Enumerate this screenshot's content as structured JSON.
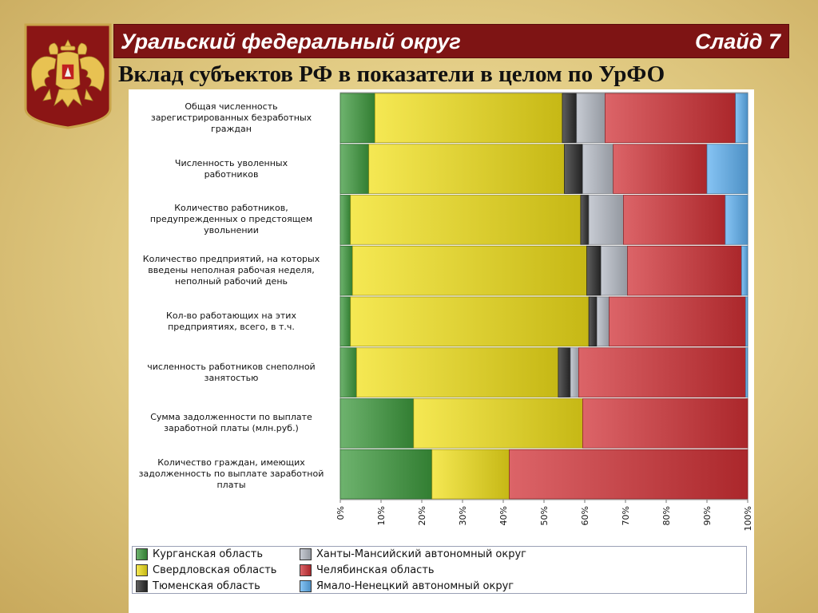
{
  "header": {
    "title": "Уральский федеральный округ",
    "slide_label": "Слайд 7",
    "subtitle": "Вклад субъектов РФ в показатели в целом по УрФО"
  },
  "emblem": {
    "icon": "double-headed-eagle-coat-of-arms",
    "color": "#8b1515"
  },
  "chart_data": {
    "type": "bar",
    "orientation": "horizontal",
    "stacked": "percent",
    "categories": [
      "Общая численность\nзарегистрированных безработных\nграждан",
      "Численность уволенных\nработников",
      "Количество работников,\nпредупрежденных о предстоящем\nувольнении",
      "Количество предприятий, на которых\nвведены неполная рабочая неделя,\nнеполный рабочий день",
      "Кол-во работающих на этих\nпредприятиях, всего, в т.ч.",
      "численность работников снеполной\nзанятостью",
      "Сумма задолженности по выплате\nзаработной платы (млн.руб.)",
      "Количество граждан, имеющих\nзадолженность по выплате заработной\nплаты"
    ],
    "series": [
      {
        "name": "Курганская область",
        "color": "#3d9a3d",
        "values": [
          8.5,
          7,
          2.5,
          3,
          2.5,
          4,
          18,
          22.5
        ]
      },
      {
        "name": "Свердловская область",
        "color": "#f2e01a",
        "values": [
          46,
          48,
          56.5,
          57.5,
          58.5,
          49.5,
          41.5,
          19
        ]
      },
      {
        "name": "Тюменская область",
        "color": "#2a2a2a",
        "values": [
          3.5,
          4.5,
          2,
          3.5,
          2,
          3,
          0,
          0
        ]
      },
      {
        "name": "Ханты-Мансийский автономный округ",
        "color": "#b4bac4",
        "values": [
          7,
          7.5,
          8.5,
          6.5,
          3,
          2,
          0,
          0
        ]
      },
      {
        "name": "Челябинская область",
        "color": "#d03035",
        "values": [
          32,
          23,
          25,
          28,
          33.5,
          41,
          40.5,
          58.5
        ]
      },
      {
        "name": "Ямало-Ненецкий автономный округ",
        "color": "#5eb0f0",
        "values": [
          3,
          10,
          5.5,
          1.5,
          0.5,
          0.5,
          0,
          0
        ]
      }
    ],
    "xlim": [
      0,
      100
    ],
    "x_ticks": [
      "0%",
      "10%",
      "20%",
      "30%",
      "40%",
      "50%",
      "60%",
      "70%",
      "80%",
      "90%",
      "100%"
    ],
    "grid": false,
    "legend_position": "bottom"
  }
}
